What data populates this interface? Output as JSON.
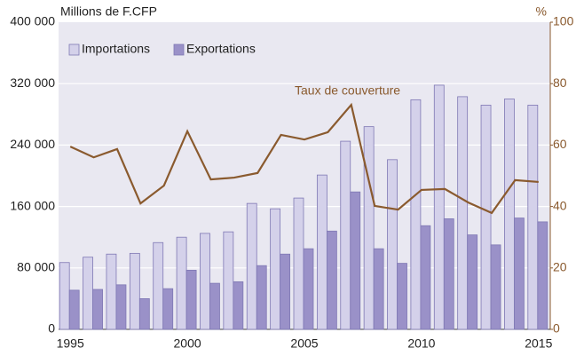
{
  "chart_data": {
    "type": "bar",
    "y_label": "Millions de F.CFP",
    "y2_label": "%",
    "annotation": "Taux de couverture",
    "categories": [
      "1995",
      null,
      null,
      null,
      null,
      "2000",
      null,
      null,
      null,
      null,
      "2005",
      null,
      null,
      null,
      null,
      "2010",
      null,
      null,
      null,
      null,
      "2015"
    ],
    "series": [
      {
        "name": "Importations",
        "color": "#d4d1ea",
        "values": [
          87000,
          94000,
          98000,
          99000,
          113000,
          120000,
          125000,
          127000,
          164000,
          157000,
          171000,
          201000,
          245000,
          264000,
          221000,
          299000,
          318000,
          303000,
          292000,
          300000,
          292000
        ]
      },
      {
        "name": "Exportations",
        "color": "#9a91c8",
        "values": [
          51000,
          52000,
          58000,
          40000,
          53000,
          77000,
          60000,
          62000,
          83000,
          98000,
          105000,
          128000,
          179000,
          105000,
          86000,
          135000,
          144000,
          123000,
          110000,
          145000,
          140000
        ]
      },
      {
        "color": "#8a5a2e",
        "type": "line",
        "axis": "y2",
        "values": [
          59.5,
          56,
          58.7,
          41,
          46.8,
          64.5,
          48.8,
          49.4,
          50.9,
          63.3,
          61.8,
          64.2,
          73.1,
          40.2,
          39,
          45.4,
          45.7,
          41.3,
          37.9,
          48.6,
          48
        ]
      }
    ],
    "ylim": [
      0,
      400000
    ],
    "yticks": [
      0,
      {
        "value": 80000,
        "label": "80 000"
      },
      {
        "value": 160000,
        "label": "160 000"
      },
      {
        "value": 240000,
        "label": "240 000"
      },
      {
        "value": 320000,
        "label": "320 000"
      },
      {
        "value": 400000,
        "label": "400 000"
      }
    ],
    "y2lim": [
      0,
      100
    ],
    "y2ticks": [
      0,
      20,
      40,
      60,
      80,
      100
    ],
    "grid": true,
    "legend": "top-left"
  }
}
